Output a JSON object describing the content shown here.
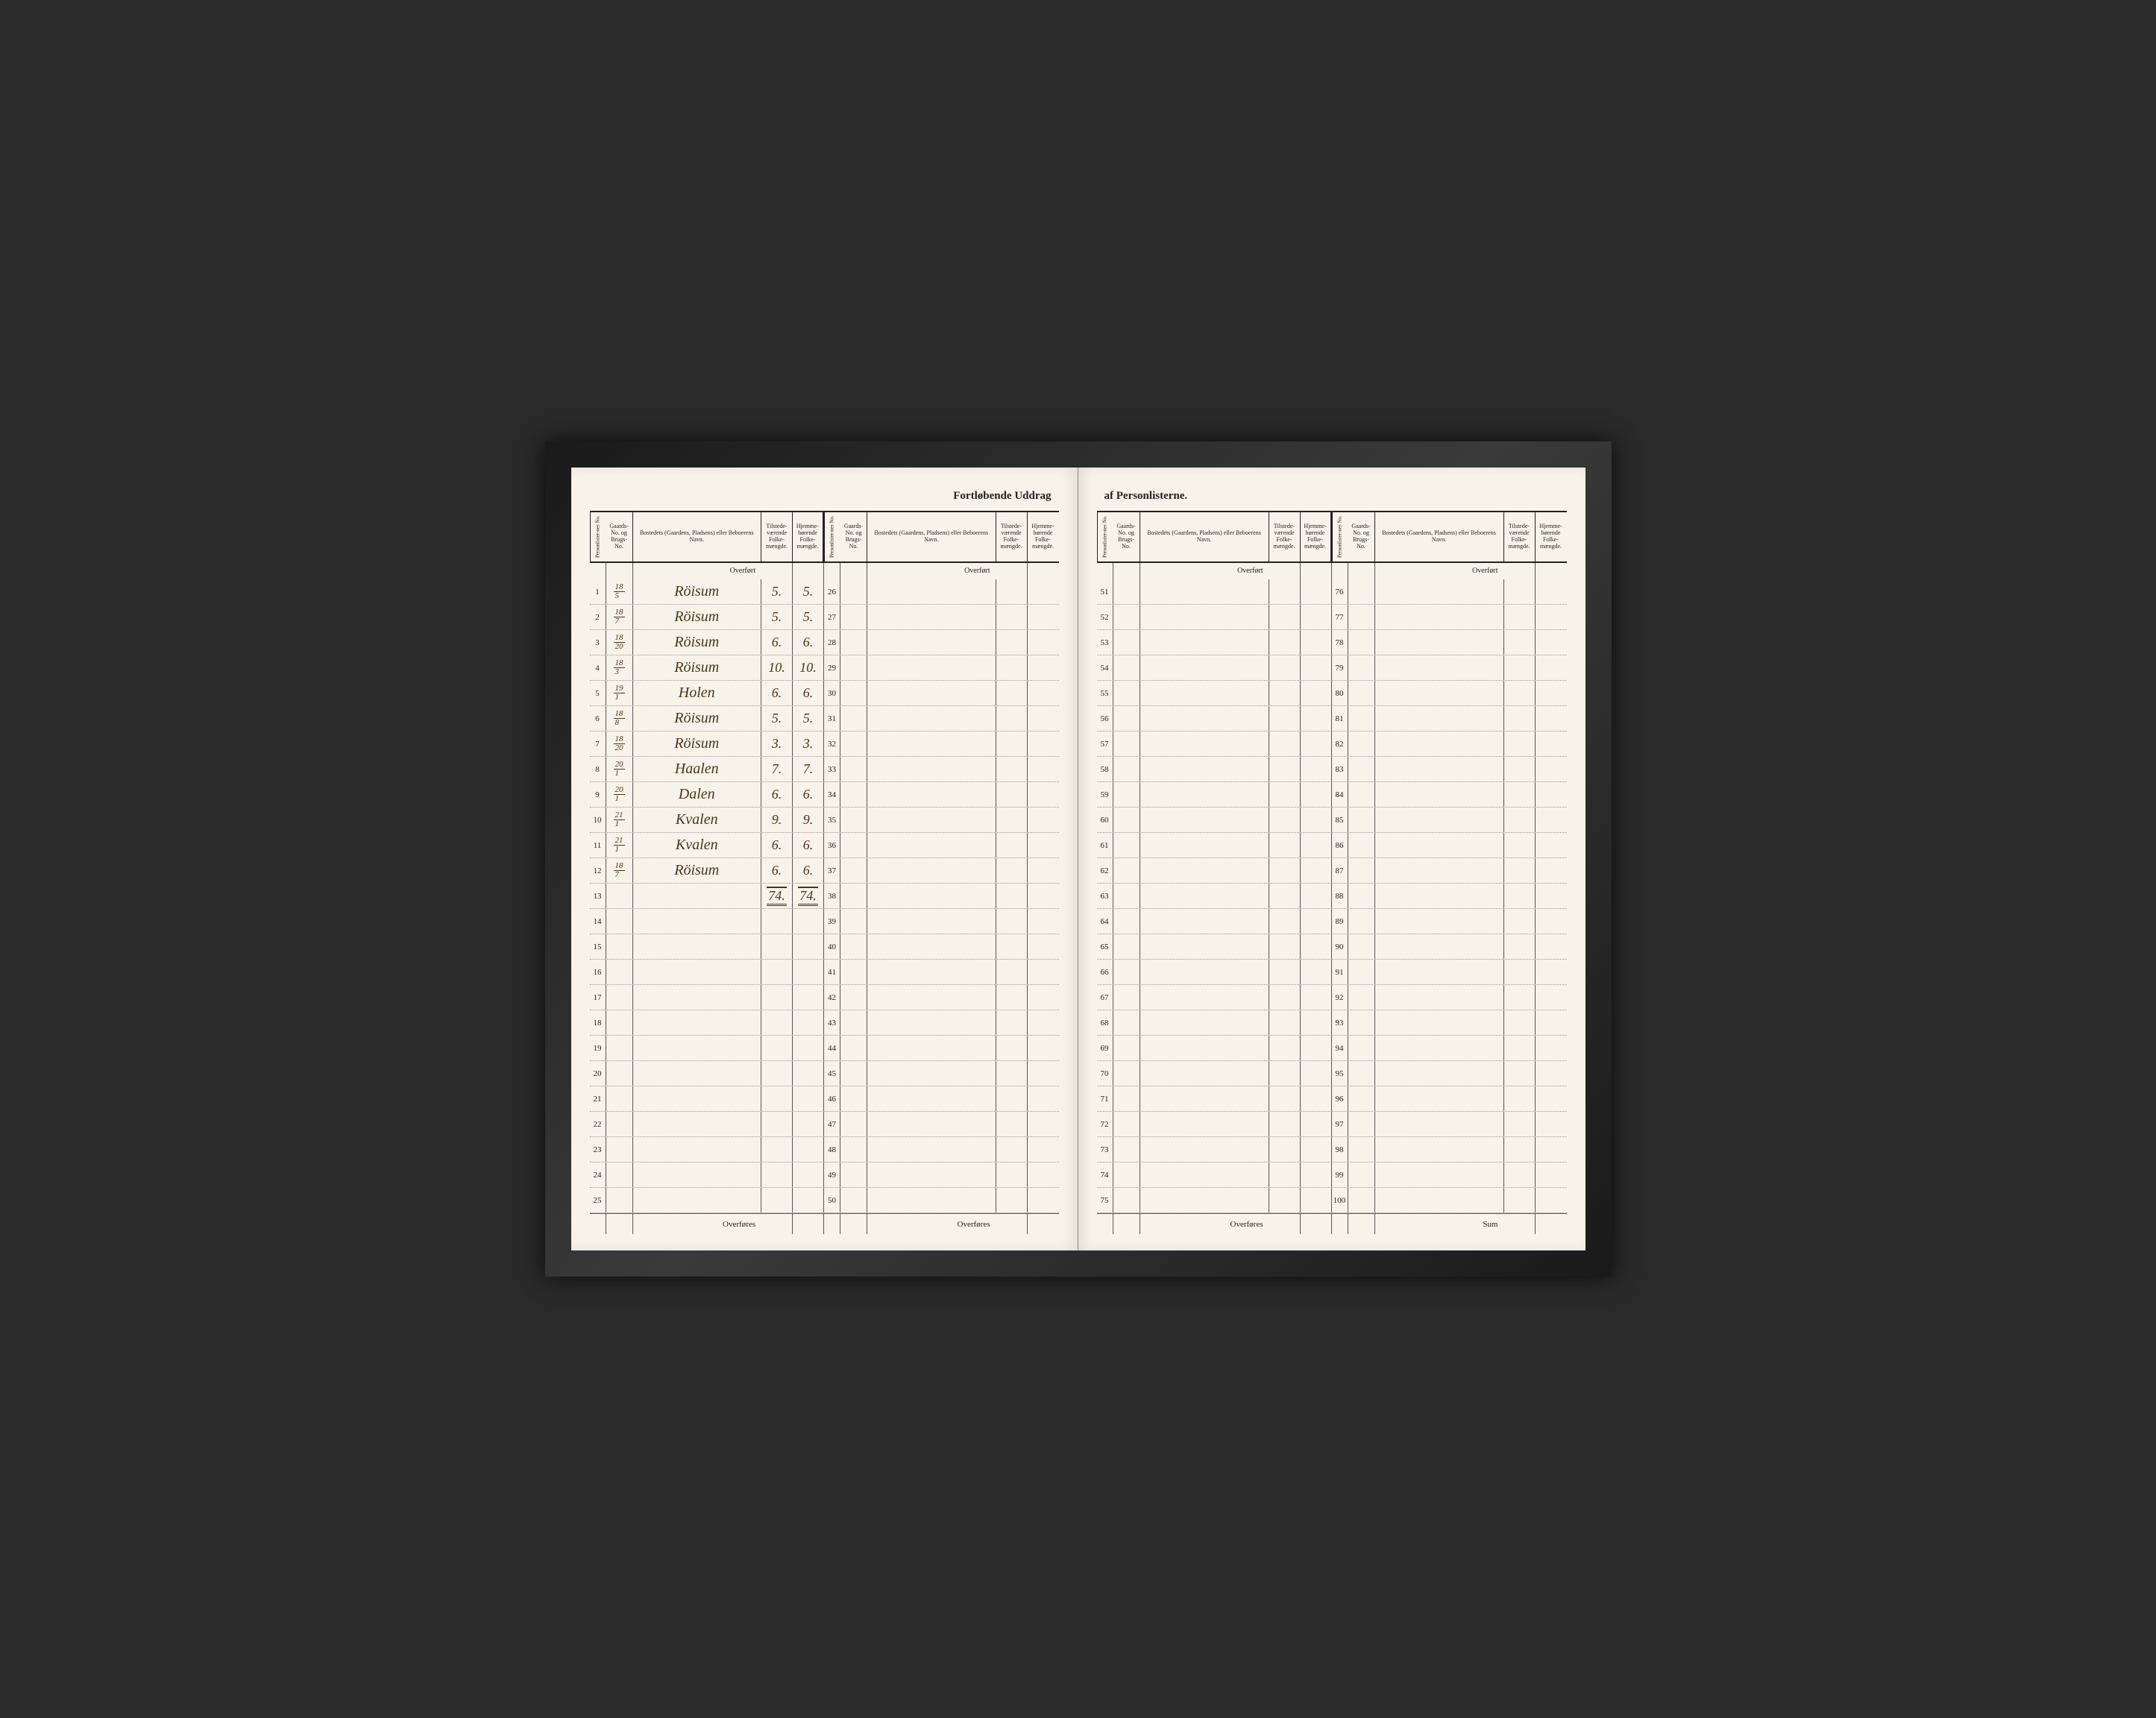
{
  "title": {
    "left": "Fortløbende Uddrag",
    "right": "af Personlisterne."
  },
  "headers": {
    "person_no": "Personlister-nes No.",
    "gaard_no": "Gaards-No. og Brugs-No.",
    "bosted": "Bostedets (Gaardens, Pladsens) eller Beboerens Navn.",
    "tilstede": "Tilstede-værende Folke-mængde.",
    "hjemme": "Hjemme-hørende Folke-mængde."
  },
  "labels": {
    "overfort": "Overført",
    "overfores": "Overføres",
    "sum": "Sum"
  },
  "sections": [
    {
      "start": 1,
      "end": 25,
      "rows": [
        {
          "n": "1",
          "g_top": "18",
          "g_bot": "5",
          "name": "Röisum",
          "t": "5.",
          "h": "5."
        },
        {
          "n": "2",
          "g_top": "18",
          "g_bot": "7",
          "name": "Röisum",
          "t": "5.",
          "h": "5."
        },
        {
          "n": "3",
          "g_top": "18",
          "g_bot": "20",
          "name": "Röisum",
          "t": "6.",
          "h": "6."
        },
        {
          "n": "4",
          "g_top": "18",
          "g_bot": "3",
          "name": "Röisum",
          "t": "10.",
          "h": "10."
        },
        {
          "n": "5",
          "g_top": "19",
          "g_bot": "1",
          "name": "Holen",
          "t": "6.",
          "h": "6."
        },
        {
          "n": "6",
          "g_top": "18",
          "g_bot": "8",
          "name": "Röisum",
          "t": "5.",
          "h": "5."
        },
        {
          "n": "7",
          "g_top": "18",
          "g_bot": "20",
          "name": "Röisum",
          "t": "3.",
          "h": "3."
        },
        {
          "n": "8",
          "g_top": "20",
          "g_bot": "1",
          "name": "Haalen",
          "t": "7.",
          "h": "7."
        },
        {
          "n": "9",
          "g_top": "20",
          "g_bot": "1",
          "name": "Dalen",
          "t": "6.",
          "h": "6."
        },
        {
          "n": "10",
          "g_top": "21",
          "g_bot": "1",
          "name": "Kvalen",
          "t": "9.",
          "h": "9."
        },
        {
          "n": "11",
          "g_top": "21",
          "g_bot": "1",
          "name": "Kvalen",
          "t": "6.",
          "h": "6."
        },
        {
          "n": "12",
          "g_top": "18",
          "g_bot": "7",
          "name": "Röisum",
          "t": "6.",
          "h": "6."
        },
        {
          "n": "13",
          "total": true,
          "t": "74.",
          "h": "74."
        },
        {
          "n": "14"
        },
        {
          "n": "15"
        },
        {
          "n": "16"
        },
        {
          "n": "17"
        },
        {
          "n": "18"
        },
        {
          "n": "19"
        },
        {
          "n": "20"
        },
        {
          "n": "21"
        },
        {
          "n": "22"
        },
        {
          "n": "23"
        },
        {
          "n": "24"
        },
        {
          "n": "25"
        }
      ],
      "footer": "overfores"
    },
    {
      "start": 26,
      "end": 50,
      "rows": [
        {
          "n": "26"
        },
        {
          "n": "27"
        },
        {
          "n": "28"
        },
        {
          "n": "29"
        },
        {
          "n": "30"
        },
        {
          "n": "31"
        },
        {
          "n": "32"
        },
        {
          "n": "33"
        },
        {
          "n": "34"
        },
        {
          "n": "35"
        },
        {
          "n": "36"
        },
        {
          "n": "37"
        },
        {
          "n": "38"
        },
        {
          "n": "39"
        },
        {
          "n": "40"
        },
        {
          "n": "41"
        },
        {
          "n": "42"
        },
        {
          "n": "43"
        },
        {
          "n": "44"
        },
        {
          "n": "45"
        },
        {
          "n": "46"
        },
        {
          "n": "47"
        },
        {
          "n": "48"
        },
        {
          "n": "49"
        },
        {
          "n": "50"
        }
      ],
      "footer": "overfores"
    },
    {
      "start": 51,
      "end": 75,
      "rows": [
        {
          "n": "51"
        },
        {
          "n": "52"
        },
        {
          "n": "53"
        },
        {
          "n": "54"
        },
        {
          "n": "55"
        },
        {
          "n": "56"
        },
        {
          "n": "57"
        },
        {
          "n": "58"
        },
        {
          "n": "59"
        },
        {
          "n": "60"
        },
        {
          "n": "61"
        },
        {
          "n": "62"
        },
        {
          "n": "63"
        },
        {
          "n": "64"
        },
        {
          "n": "65"
        },
        {
          "n": "66"
        },
        {
          "n": "67"
        },
        {
          "n": "68"
        },
        {
          "n": "69"
        },
        {
          "n": "70"
        },
        {
          "n": "71"
        },
        {
          "n": "72"
        },
        {
          "n": "73"
        },
        {
          "n": "74"
        },
        {
          "n": "75"
        }
      ],
      "footer": "overfores"
    },
    {
      "start": 76,
      "end": 100,
      "rows": [
        {
          "n": "76"
        },
        {
          "n": "77"
        },
        {
          "n": "78"
        },
        {
          "n": "79"
        },
        {
          "n": "80"
        },
        {
          "n": "81"
        },
        {
          "n": "82"
        },
        {
          "n": "83"
        },
        {
          "n": "84"
        },
        {
          "n": "85"
        },
        {
          "n": "86"
        },
        {
          "n": "87"
        },
        {
          "n": "88"
        },
        {
          "n": "89"
        },
        {
          "n": "90"
        },
        {
          "n": "91"
        },
        {
          "n": "92"
        },
        {
          "n": "93"
        },
        {
          "n": "94"
        },
        {
          "n": "95"
        },
        {
          "n": "96"
        },
        {
          "n": "97"
        },
        {
          "n": "98"
        },
        {
          "n": "99"
        },
        {
          "n": "100"
        }
      ],
      "footer": "sum"
    }
  ],
  "colors": {
    "paper": "#f7f3ea",
    "ink_print": "#222222",
    "ink_hand": "#4a3518",
    "frame": "#2a2a2a"
  }
}
